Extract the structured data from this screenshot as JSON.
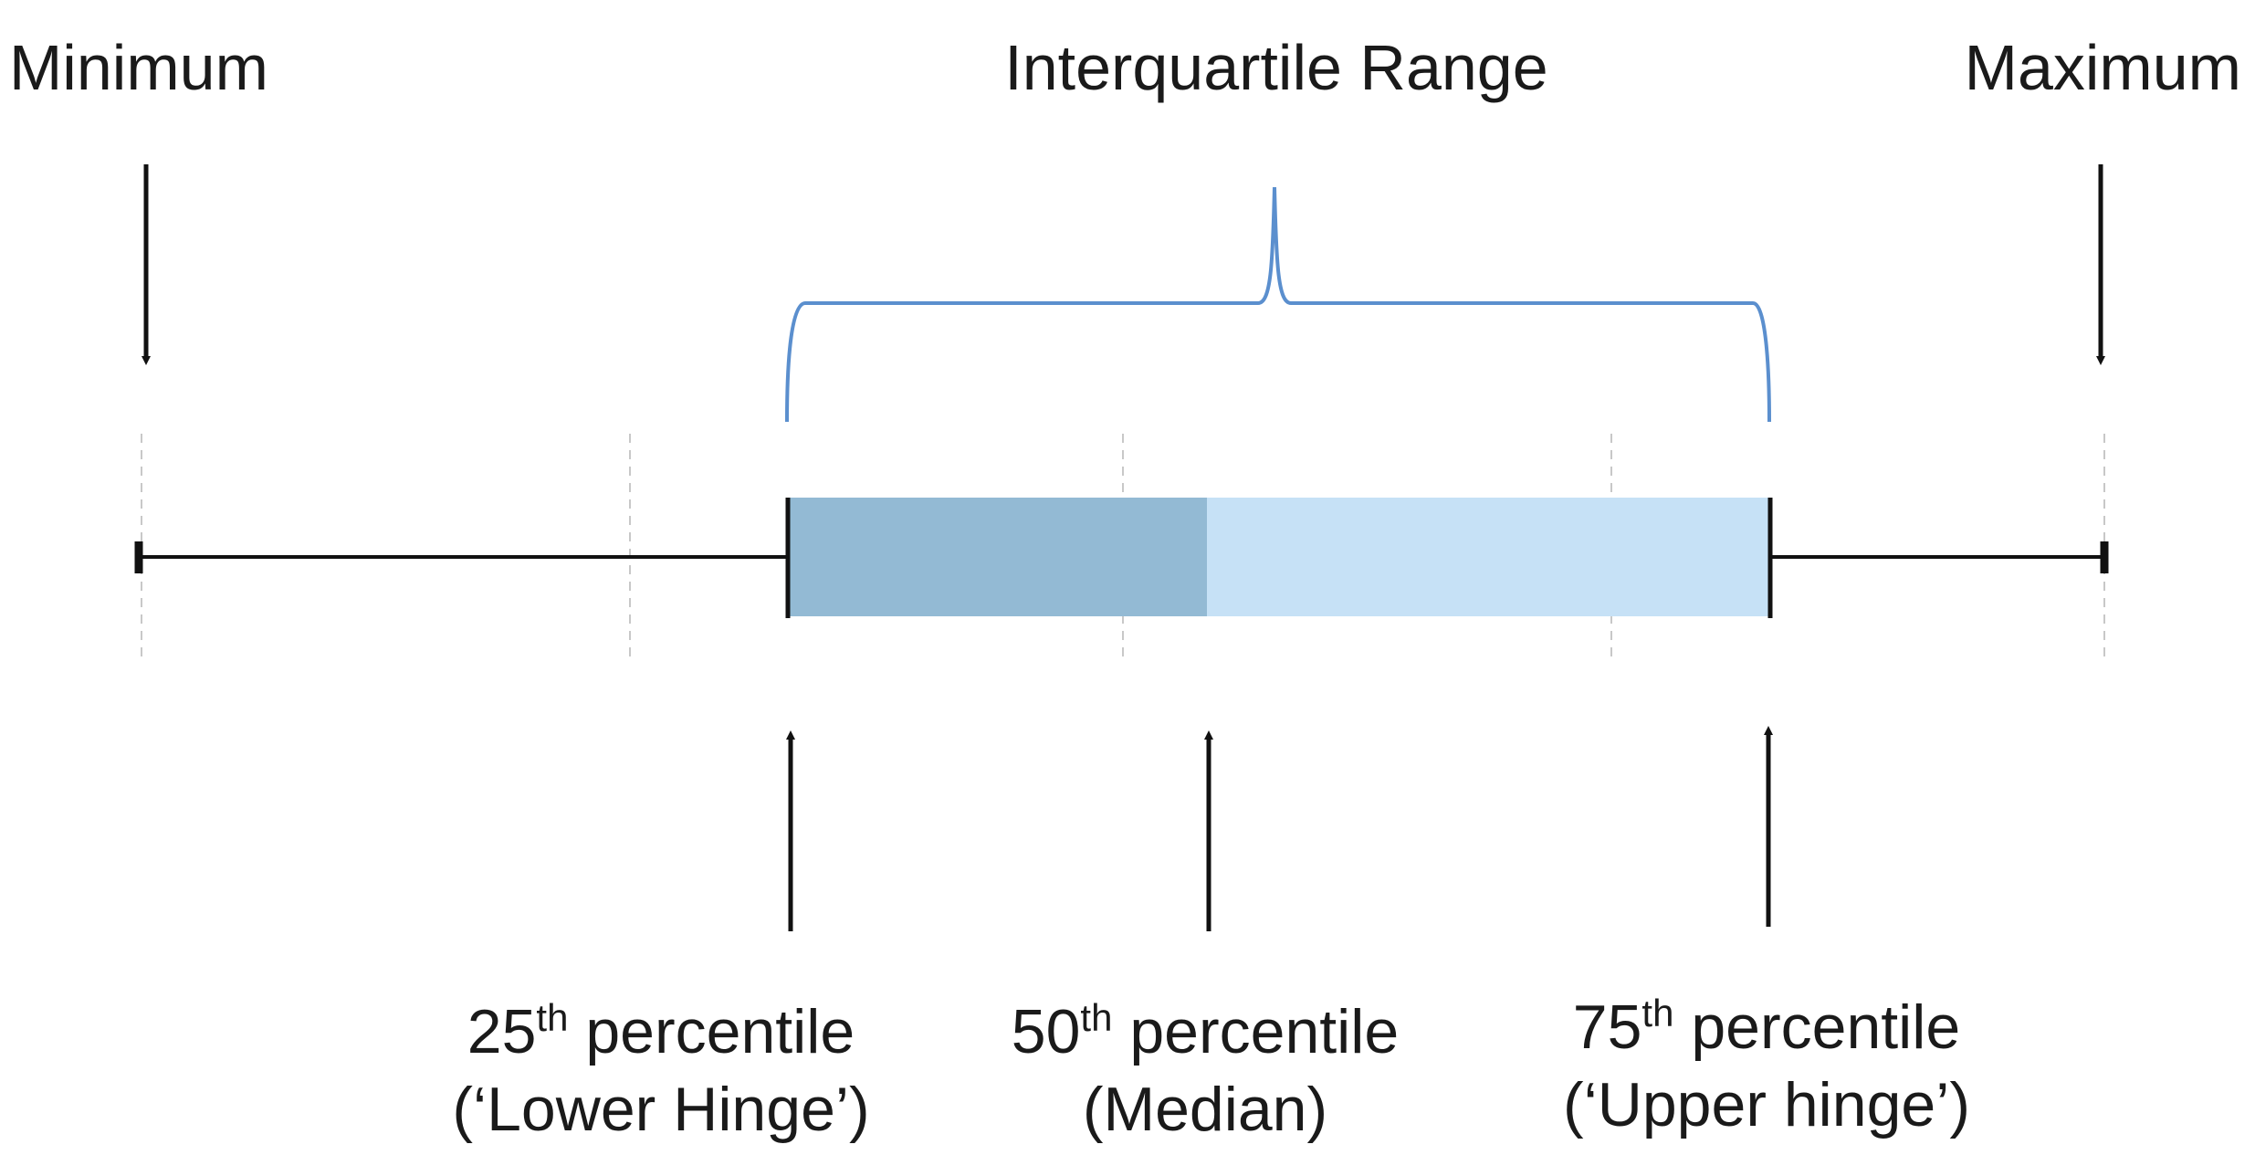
{
  "labels": {
    "minimum": "Minimum",
    "maximum": "Maximum",
    "iqr": "Interquartile Range",
    "p25": {
      "num": "25",
      "sup": "th",
      "rest": " percentile",
      "line2": "(‘Lower Hinge’)"
    },
    "p50": {
      "num": "50",
      "sup": "th",
      "rest": " percentile",
      "line2": "(Median)"
    },
    "p75": {
      "num": "75",
      "sup": "th",
      "rest": " percentile",
      "line2": "(‘Upper hinge’)"
    }
  },
  "colors": {
    "lower_box": "#93bad4",
    "upper_box": "#c6e1f6",
    "brace": "#5b8fce",
    "line": "#111111",
    "gridline": "#c8c8c8"
  }
}
